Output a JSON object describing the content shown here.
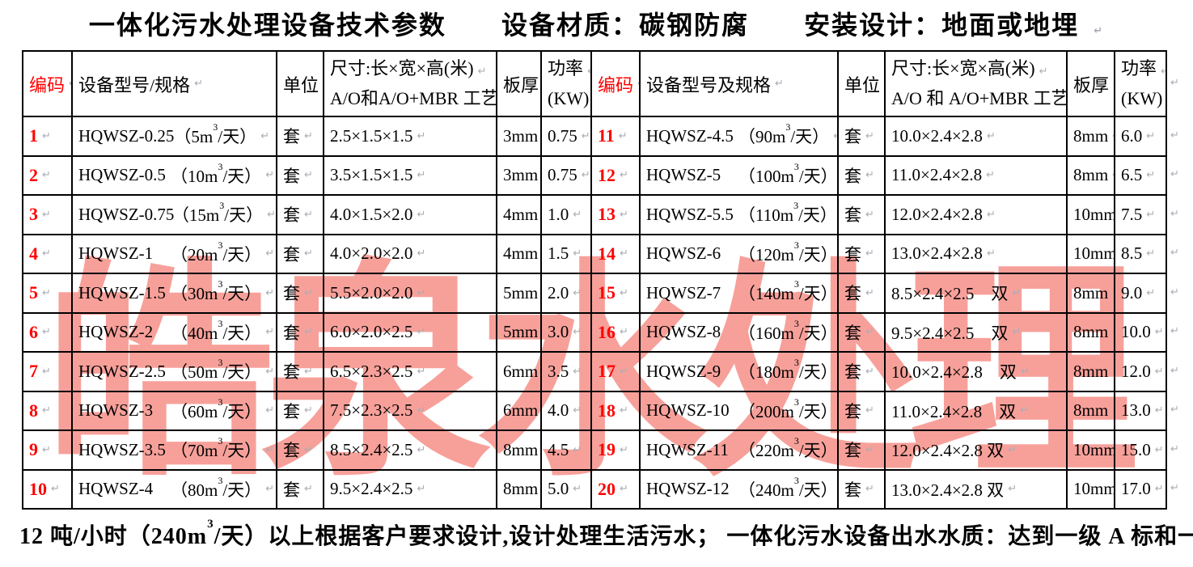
{
  "title": {
    "segments": [
      "一体化污水处理设备技术参数",
      "设备材质：碳钢防腐",
      "安装设计：地面或地埋"
    ]
  },
  "watermark": {
    "text": "皓泉水处理",
    "color": "#f7a09a"
  },
  "marks": {
    "pilcrow": "↵"
  },
  "colors": {
    "code_red": "#ff0000",
    "border_black": "#000000",
    "mark_gray": "#a9adb5"
  },
  "spec_format": {
    "open": "（",
    "unit": "m",
    "sup": "3",
    "tail": "/天",
    "close": "）"
  },
  "table": {
    "left": {
      "headers": {
        "code": "编码",
        "model": "设备型号/规格",
        "unit": "单位",
        "size_line1": "尺寸:长×宽×高(米)",
        "size_line2": "A/O和A/O+MBR 工艺尺寸",
        "thickness": "板厚",
        "power_line1": "功率",
        "power_line2": "(KW)"
      },
      "rows": [
        {
          "code": "1",
          "model": "HQWSZ-0.25",
          "capacity": "5",
          "unit": "套",
          "size": "2.5×1.5×1.5",
          "thickness": "3mm",
          "power": "0.75"
        },
        {
          "code": "2",
          "model": "HQWSZ-0.5",
          "capacity": "10",
          "unit": "套",
          "size": "3.5×1.5×1.5",
          "thickness": "3mm",
          "power": "0.75"
        },
        {
          "code": "3",
          "model": "HQWSZ-0.75",
          "capacity": "15",
          "unit": "套",
          "size": "4.0×1.5×2.0",
          "thickness": "4mm",
          "power": "1.0"
        },
        {
          "code": "4",
          "model": "HQWSZ-1",
          "capacity": "20",
          "unit": "套",
          "size": "4.0×2.0×2.0",
          "thickness": "4mm",
          "power": "1.5"
        },
        {
          "code": "5",
          "model": "HQWSZ-1.5",
          "capacity": "30",
          "unit": "套",
          "size": "5.5×2.0×2.0",
          "thickness": "5mm",
          "power": "2.0"
        },
        {
          "code": "6",
          "model": "HQWSZ-2",
          "capacity": "40",
          "unit": "套",
          "size": "6.0×2.0×2.5",
          "thickness": "5mm",
          "power": "3.0"
        },
        {
          "code": "7",
          "model": "HQWSZ-2.5",
          "capacity": "50",
          "unit": "套",
          "size": "6.5×2.3×2.5",
          "thickness": "6mm",
          "power": "3.5"
        },
        {
          "code": "8",
          "model": "HQWSZ-3",
          "capacity": "60",
          "unit": "套",
          "size": "7.5×2.3×2.5",
          "thickness": "6mm",
          "power": "4.0"
        },
        {
          "code": "9",
          "model": "HQWSZ-3.5",
          "capacity": "70",
          "unit": "套",
          "size": "8.5×2.4×2.5",
          "thickness": "8mm",
          "power": "4.5"
        },
        {
          "code": "10",
          "model": "HQWSZ-4",
          "capacity": "80",
          "unit": "套",
          "size": "9.5×2.4×2.5",
          "thickness": "8mm",
          "power": "5.0"
        }
      ]
    },
    "right": {
      "headers": {
        "code": "编码",
        "model": "设备型号及规格",
        "unit": "单位",
        "size_line1": "尺寸:长×宽×高(米)",
        "size_line2": "A/O 和 A/O+MBR 工艺尺寸",
        "thickness": "板厚",
        "power_line1": "功率",
        "power_line2": "(KW)"
      },
      "rows": [
        {
          "code": "11",
          "model": "HQWSZ-4.5",
          "capacity": "90",
          "unit": "套",
          "size": "10.0×2.4×2.8",
          "thickness": "8mm",
          "power": "6.0"
        },
        {
          "code": "12",
          "model": "HQWSZ-5",
          "capacity": "100",
          "unit": "套",
          "size": "11.0×2.4×2.8",
          "thickness": "8mm",
          "power": "6.5"
        },
        {
          "code": "13",
          "model": "HQWSZ-5.5",
          "capacity": "110",
          "unit": "套",
          "size": "12.0×2.4×2.8",
          "thickness": "10mm",
          "power": "7.5"
        },
        {
          "code": "14",
          "model": "HQWSZ-6",
          "capacity": "120",
          "unit": "套",
          "size": "13.0×2.4×2.8",
          "thickness": "10mm",
          "power": "8.5"
        },
        {
          "code": "15",
          "model": "HQWSZ-7",
          "capacity": "140",
          "unit": "套",
          "size": "8.5×2.4×2.5　双",
          "thickness": "8mm",
          "power": "9.0"
        },
        {
          "code": "16",
          "model": "HQWSZ-8",
          "capacity": "160",
          "unit": "套",
          "size": "9.5×2.4×2.5　双",
          "thickness": "8mm",
          "power": "10.0"
        },
        {
          "code": "17",
          "model": "HQWSZ-9",
          "capacity": "180",
          "unit": "套",
          "size": "10.0×2.4×2.8　双",
          "thickness": "8mm",
          "power": "12.0"
        },
        {
          "code": "18",
          "model": "HQWSZ-10",
          "capacity": "200",
          "unit": "套",
          "size": "11.0×2.4×2.8　双",
          "thickness": "8mm",
          "power": "13.0"
        },
        {
          "code": "19",
          "model": "HQWSZ-11",
          "capacity": "220",
          "unit": "套",
          "size": "12.0×2.4×2.8 双",
          "thickness": "10mm",
          "power": "15.0"
        },
        {
          "code": "20",
          "model": "HQWSZ-12",
          "capacity": "240",
          "unit": "套",
          "size": "13.0×2.4×2.8 双",
          "thickness": "10mm",
          "power": "17.0"
        }
      ]
    }
  },
  "footnote": {
    "part1": "12 吨/小时（240m",
    "sup": "3",
    "part2": "/天）以上根据客户要求设计,设计处理生活污水； 一体化污水设备出水水质：达到一级 A 标和一级 B 标"
  }
}
